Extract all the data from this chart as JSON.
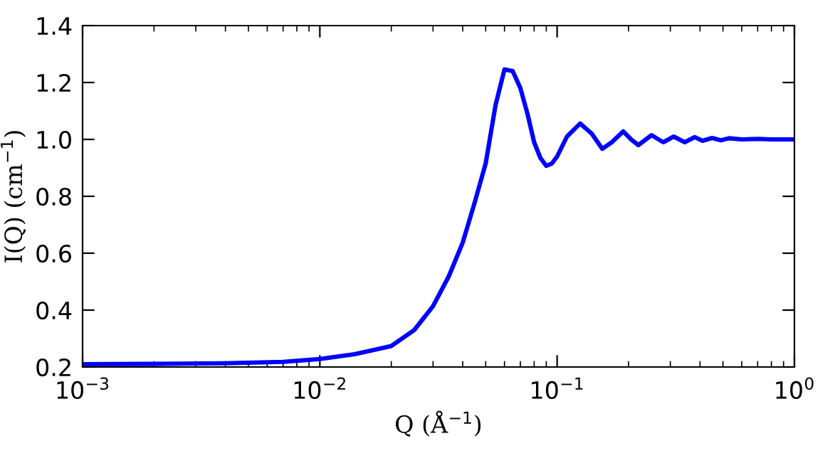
{
  "chart_data": {
    "type": "line",
    "xlabel": "Q (Å$^{−1}$)",
    "ylabel": "I(Q) (cm$^{−1}$)",
    "log": "x",
    "xlim": [
      0.001,
      1
    ],
    "ylim": [
      0.2,
      1.4
    ],
    "xticks": [
      {
        "value": 0.001,
        "label": "10$^{−3}$"
      },
      {
        "value": 0.01,
        "label": "10$^{−2}$"
      },
      {
        "value": 0.1,
        "label": "10$^{−1}$"
      },
      {
        "value": 1,
        "label": "10$^{0}$"
      }
    ],
    "yticks": [
      {
        "value": 0.2,
        "label": "0.2"
      },
      {
        "value": 0.4,
        "label": "0.4"
      },
      {
        "value": 0.6,
        "label": "0.6"
      },
      {
        "value": 0.8,
        "label": "0.8"
      },
      {
        "value": 1.0,
        "label": "1.0"
      },
      {
        "value": 1.2,
        "label": "1.2"
      },
      {
        "value": 1.4,
        "label": "1.4"
      }
    ],
    "grid": false,
    "legend": false,
    "marker": "none",
    "line_style": "solid",
    "series": [
      {
        "color": "#0000ff",
        "x": [
          0.001,
          0.002,
          0.004,
          0.007,
          0.01,
          0.014,
          0.02,
          0.025,
          0.03,
          0.035,
          0.04,
          0.045,
          0.05,
          0.055,
          0.06,
          0.065,
          0.07,
          0.075,
          0.08,
          0.085,
          0.09,
          0.095,
          0.1,
          0.11,
          0.125,
          0.14,
          0.155,
          0.17,
          0.19,
          0.205,
          0.22,
          0.25,
          0.28,
          0.31,
          0.345,
          0.38,
          0.41,
          0.45,
          0.49,
          0.53,
          0.6,
          0.7,
          0.8,
          1.0
        ],
        "values": [
          0.21,
          0.211,
          0.213,
          0.218,
          0.228,
          0.245,
          0.274,
          0.33,
          0.414,
          0.52,
          0.637,
          0.78,
          0.916,
          1.12,
          1.246,
          1.24,
          1.18,
          1.09,
          0.99,
          0.935,
          0.907,
          0.915,
          0.94,
          1.01,
          1.056,
          1.02,
          0.967,
          0.99,
          1.028,
          1.0,
          0.98,
          1.015,
          0.99,
          1.01,
          0.99,
          1.008,
          0.995,
          1.005,
          0.997,
          1.004,
          1.0,
          1.002,
          1.0,
          1.0
        ]
      }
    ]
  }
}
